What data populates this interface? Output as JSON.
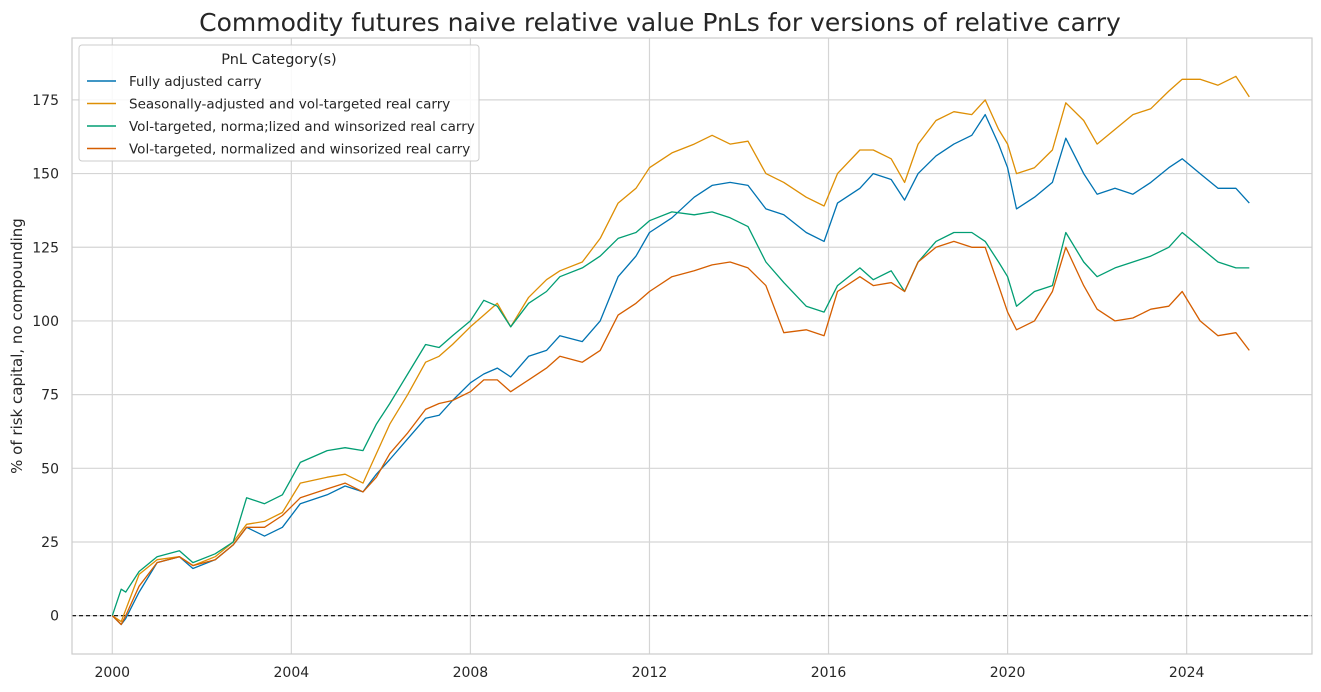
{
  "chart_data": {
    "type": "line",
    "title": "Commodity futures naive relative value PnLs for versions of relative carry",
    "xlabel": "",
    "ylabel": "% of risk capital, no compounding",
    "xlim": [
      1999.1,
      2026.8
    ],
    "ylim": [
      -13,
      196
    ],
    "x_ticks": [
      2000,
      2004,
      2008,
      2012,
      2016,
      2020,
      2024
    ],
    "x_tick_labels": [
      "2000",
      "2004",
      "2008",
      "2012",
      "2016",
      "2020",
      "2024"
    ],
    "y_ticks": [
      0,
      25,
      50,
      75,
      100,
      125,
      150,
      175
    ],
    "y_tick_labels": [
      "0",
      "25",
      "50",
      "75",
      "100",
      "125",
      "150",
      "175"
    ],
    "grid": true,
    "reference_line": {
      "y": 0,
      "style": "dashed",
      "color": "#000000"
    },
    "legend": {
      "title": "PnL Category(s)",
      "placement": "top-left"
    },
    "series": [
      {
        "name": "Fully adjusted carry",
        "color": "#0173b2",
        "x": [
          2000.0,
          2000.2,
          2000.3,
          2000.6,
          2001.0,
          2001.5,
          2001.8,
          2002.3,
          2002.7,
          2003.0,
          2003.4,
          2003.8,
          2004.2,
          2004.8,
          2005.2,
          2005.6,
          2005.9,
          2006.2,
          2006.6,
          2007.0,
          2007.3,
          2007.6,
          2008.0,
          2008.3,
          2008.6,
          2008.9,
          2009.3,
          2009.7,
          2010.0,
          2010.5,
          2010.9,
          2011.3,
          2011.7,
          2012.0,
          2012.5,
          2013.0,
          2013.4,
          2013.8,
          2014.2,
          2014.6,
          2015.0,
          2015.5,
          2015.9,
          2016.2,
          2016.7,
          2017.0,
          2017.4,
          2017.7,
          2018.0,
          2018.4,
          2018.8,
          2019.2,
          2019.5,
          2019.8,
          2020.0,
          2020.2,
          2020.6,
          2021.0,
          2021.3,
          2021.7,
          2022.0,
          2022.4,
          2022.8,
          2023.2,
          2023.6,
          2023.9,
          2024.3,
          2024.7,
          2025.1,
          2025.4
        ],
        "y": [
          0,
          -3,
          -1,
          8,
          18,
          20,
          16,
          19,
          24,
          30,
          27,
          30,
          38,
          41,
          44,
          42,
          48,
          53,
          60,
          67,
          68,
          73,
          79,
          82,
          84,
          81,
          88,
          90,
          95,
          93,
          100,
          115,
          122,
          130,
          135,
          142,
          146,
          147,
          146,
          138,
          136,
          130,
          127,
          140,
          145,
          150,
          148,
          141,
          150,
          156,
          160,
          163,
          170,
          160,
          152,
          138,
          142,
          147,
          162,
          150,
          143,
          145,
          143,
          147,
          152,
          155,
          150,
          145,
          145,
          140
        ]
      },
      {
        "name": "Seasonally-adjusted and vol-targeted real carry",
        "color": "#de8f05",
        "x": [
          2000.0,
          2000.2,
          2000.3,
          2000.6,
          2001.0,
          2001.5,
          2001.8,
          2002.3,
          2002.7,
          2003.0,
          2003.4,
          2003.8,
          2004.2,
          2004.8,
          2005.2,
          2005.6,
          2005.9,
          2006.2,
          2006.6,
          2007.0,
          2007.3,
          2007.6,
          2008.0,
          2008.3,
          2008.6,
          2008.9,
          2009.3,
          2009.7,
          2010.0,
          2010.5,
          2010.9,
          2011.3,
          2011.7,
          2012.0,
          2012.5,
          2013.0,
          2013.4,
          2013.8,
          2014.2,
          2014.6,
          2015.0,
          2015.5,
          2015.9,
          2016.2,
          2016.7,
          2017.0,
          2017.4,
          2017.7,
          2018.0,
          2018.4,
          2018.8,
          2019.2,
          2019.5,
          2019.8,
          2020.0,
          2020.2,
          2020.6,
          2021.0,
          2021.3,
          2021.7,
          2022.0,
          2022.4,
          2022.8,
          2023.2,
          2023.6,
          2023.9,
          2024.3,
          2024.7,
          2025.1,
          2025.4
        ],
        "y": [
          0,
          -2,
          2,
          14,
          19,
          20,
          17,
          20,
          25,
          31,
          32,
          35,
          45,
          47,
          48,
          45,
          55,
          65,
          75,
          86,
          88,
          92,
          98,
          102,
          106,
          98,
          108,
          114,
          117,
          120,
          128,
          140,
          145,
          152,
          157,
          160,
          163,
          160,
          161,
          150,
          147,
          142,
          139,
          150,
          158,
          158,
          155,
          147,
          160,
          168,
          171,
          170,
          175,
          165,
          160,
          150,
          152,
          158,
          174,
          168,
          160,
          165,
          170,
          172,
          178,
          182,
          182,
          180,
          183,
          176
        ]
      },
      {
        "name": "Vol-targeted, norma;lized and winsorized real carry",
        "color": "#029e73",
        "x": [
          2000.0,
          2000.2,
          2000.3,
          2000.6,
          2001.0,
          2001.5,
          2001.8,
          2002.3,
          2002.7,
          2003.0,
          2003.4,
          2003.8,
          2004.2,
          2004.8,
          2005.2,
          2005.6,
          2005.9,
          2006.2,
          2006.6,
          2007.0,
          2007.3,
          2007.6,
          2008.0,
          2008.3,
          2008.6,
          2008.9,
          2009.3,
          2009.7,
          2010.0,
          2010.5,
          2010.9,
          2011.3,
          2011.7,
          2012.0,
          2012.5,
          2013.0,
          2013.4,
          2013.8,
          2014.2,
          2014.6,
          2015.0,
          2015.5,
          2015.9,
          2016.2,
          2016.7,
          2017.0,
          2017.4,
          2017.7,
          2018.0,
          2018.4,
          2018.8,
          2019.2,
          2019.5,
          2019.8,
          2020.0,
          2020.2,
          2020.6,
          2021.0,
          2021.3,
          2021.7,
          2022.0,
          2022.4,
          2022.8,
          2023.2,
          2023.6,
          2023.9,
          2024.3,
          2024.7,
          2025.1,
          2025.4
        ],
        "y": [
          0,
          9,
          8,
          15,
          20,
          22,
          18,
          21,
          25,
          40,
          38,
          41,
          52,
          56,
          57,
          56,
          65,
          72,
          82,
          92,
          91,
          95,
          100,
          107,
          105,
          98,
          106,
          110,
          115,
          118,
          122,
          128,
          130,
          134,
          137,
          136,
          137,
          135,
          132,
          120,
          113,
          105,
          103,
          112,
          118,
          114,
          117,
          110,
          120,
          127,
          130,
          130,
          127,
          120,
          115,
          105,
          110,
          112,
          130,
          120,
          115,
          118,
          120,
          122,
          125,
          130,
          125,
          120,
          118,
          118
        ]
      },
      {
        "name": "Vol-targeted, normalized and winsorized real carry",
        "color": "#d55e00",
        "x": [
          2000.0,
          2000.2,
          2000.3,
          2000.6,
          2001.0,
          2001.5,
          2001.8,
          2002.3,
          2002.7,
          2003.0,
          2003.4,
          2003.8,
          2004.2,
          2004.8,
          2005.2,
          2005.6,
          2005.9,
          2006.2,
          2006.6,
          2007.0,
          2007.3,
          2007.6,
          2008.0,
          2008.3,
          2008.6,
          2008.9,
          2009.3,
          2009.7,
          2010.0,
          2010.5,
          2010.9,
          2011.3,
          2011.7,
          2012.0,
          2012.5,
          2013.0,
          2013.4,
          2013.8,
          2014.2,
          2014.6,
          2015.0,
          2015.5,
          2015.9,
          2016.2,
          2016.7,
          2017.0,
          2017.4,
          2017.7,
          2018.0,
          2018.4,
          2018.8,
          2019.2,
          2019.5,
          2019.8,
          2020.0,
          2020.2,
          2020.6,
          2021.0,
          2021.3,
          2021.7,
          2022.0,
          2022.4,
          2022.8,
          2023.2,
          2023.6,
          2023.9,
          2024.3,
          2024.7,
          2025.1,
          2025.4
        ],
        "y": [
          0,
          -3,
          0,
          10,
          18,
          20,
          17,
          19,
          24,
          30,
          30,
          34,
          40,
          43,
          45,
          42,
          47,
          55,
          62,
          70,
          72,
          73,
          76,
          80,
          80,
          76,
          80,
          84,
          88,
          86,
          90,
          102,
          106,
          110,
          115,
          117,
          119,
          120,
          118,
          112,
          96,
          97,
          95,
          110,
          115,
          112,
          113,
          110,
          120,
          125,
          127,
          125,
          125,
          112,
          103,
          97,
          100,
          110,
          125,
          112,
          104,
          100,
          101,
          104,
          105,
          110,
          100,
          95,
          96,
          90
        ]
      }
    ]
  }
}
